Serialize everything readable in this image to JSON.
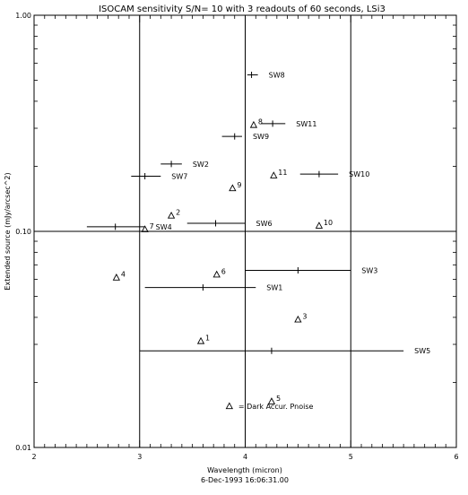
{
  "chart_data": {
    "type": "scatter",
    "title": "ISOCAM sensitivity S/N= 10 with 3 readouts of 60 seconds, LSi3",
    "xlabel": "Wavelength (micron)",
    "ylabel": "Extended source (mJy/arcsec^2)",
    "footer": "6-Dec-1993 16:06:31.00",
    "xlim": [
      2,
      6
    ],
    "ylim": [
      0.01,
      1.0
    ],
    "yscale": "log",
    "x_ticks": [
      "2",
      "3",
      "4",
      "5",
      "6"
    ],
    "y_ticks": [
      {
        "value": 1.0,
        "label": "1.00"
      },
      {
        "value": 0.1,
        "label": "0.10"
      },
      {
        "value": 0.01,
        "label": "0.01"
      }
    ],
    "grid_x": [
      3,
      4,
      5
    ],
    "grid_y": [
      0.1
    ],
    "series": [
      {
        "name": "SW",
        "marker": "plus-with-bandwidth",
        "points": [
          {
            "label": "SW1",
            "x": 3.6,
            "x_lo": 3.05,
            "x_hi": 4.1,
            "y": 0.055
          },
          {
            "label": "SW2",
            "x": 3.3,
            "x_lo": 3.2,
            "x_hi": 3.4,
            "y": 0.205
          },
          {
            "label": "SW3",
            "x": 4.5,
            "x_lo": 4.0,
            "x_hi": 5.0,
            "y": 0.066
          },
          {
            "label": "SW4",
            "x": 2.77,
            "x_lo": 2.5,
            "x_hi": 3.05,
            "y": 0.105
          },
          {
            "label": "SW5",
            "x": 4.25,
            "x_lo": 3.0,
            "x_hi": 5.5,
            "y": 0.028
          },
          {
            "label": "SW6",
            "x": 3.72,
            "x_lo": 3.45,
            "x_hi": 4.0,
            "y": 0.109
          },
          {
            "label": "SW7",
            "x": 3.05,
            "x_lo": 2.92,
            "x_hi": 3.2,
            "y": 0.18
          },
          {
            "label": "SW8",
            "x": 4.06,
            "x_lo": 4.02,
            "x_hi": 4.12,
            "y": 0.53
          },
          {
            "label": "SW9",
            "x": 3.9,
            "x_lo": 3.78,
            "x_hi": 3.97,
            "y": 0.275
          },
          {
            "label": "SW10",
            "x": 4.7,
            "x_lo": 4.52,
            "x_hi": 4.88,
            "y": 0.184
          },
          {
            "label": "SW11",
            "x": 4.26,
            "x_lo": 4.15,
            "x_hi": 4.38,
            "y": 0.315
          }
        ]
      },
      {
        "name": "Dark Accur. Pnoise",
        "marker": "triangle",
        "points": [
          {
            "label": "1",
            "x": 3.58,
            "y": 0.031
          },
          {
            "label": "2",
            "x": 3.3,
            "y": 0.118
          },
          {
            "label": "3",
            "x": 4.5,
            "y": 0.039
          },
          {
            "label": "4",
            "x": 2.78,
            "y": 0.061
          },
          {
            "label": "5",
            "x": 4.25,
            "y": 0.0163
          },
          {
            "label": "6",
            "x": 3.73,
            "y": 0.063
          },
          {
            "label": "7",
            "x": 3.05,
            "y": 0.102
          },
          {
            "label": "8",
            "x": 4.08,
            "y": 0.31
          },
          {
            "label": "9",
            "x": 3.88,
            "y": 0.158
          },
          {
            "label": "10",
            "x": 4.7,
            "y": 0.106
          },
          {
            "label": "11",
            "x": 4.27,
            "y": 0.181
          }
        ]
      }
    ],
    "legend": {
      "placement": "bottom-center",
      "marker": "triangle",
      "text": "= Dark Accur. Pnoise",
      "x": 3.85,
      "y": 0.0155
    }
  }
}
